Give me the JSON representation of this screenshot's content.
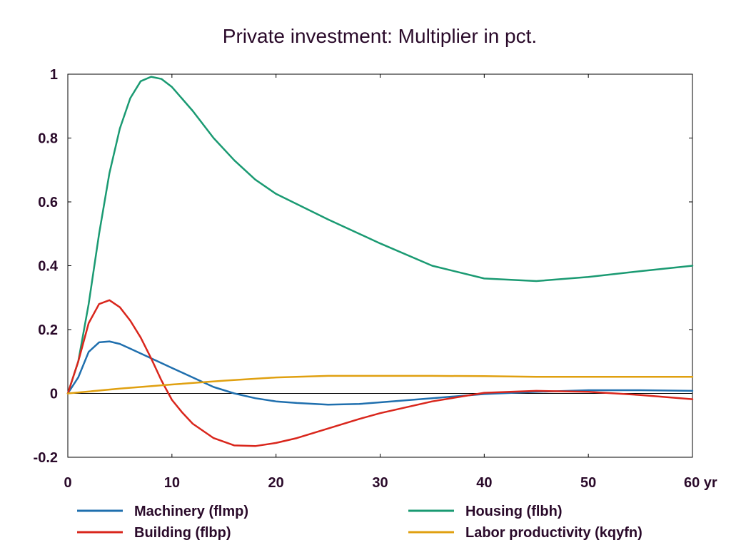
{
  "chart_data": {
    "type": "line",
    "title": "Private investment: Multiplier in pct.",
    "xlabel": "",
    "ylabel": "",
    "x_unit_label": "yr",
    "xlim": [
      0,
      60
    ],
    "ylim": [
      -0.2,
      1
    ],
    "x_ticks": [
      0,
      10,
      20,
      30,
      40,
      50,
      60
    ],
    "x_tick_labels": [
      "0",
      "10",
      "20",
      "30",
      "40",
      "50",
      "60 yr"
    ],
    "y_ticks": [
      -0.2,
      0,
      0.2,
      0.4,
      0.6,
      0.8,
      1
    ],
    "y_tick_labels": [
      "-0.2",
      "0",
      "0.2",
      "0.4",
      "0.6",
      "0.8",
      "1"
    ],
    "grid": false,
    "legend_position": "bottom",
    "series": [
      {
        "name": "Machinery (flmp)",
        "color": "#1f6fae",
        "x": [
          0,
          1,
          2,
          3,
          4,
          5,
          6,
          8,
          10,
          12,
          14,
          16,
          18,
          20,
          22,
          25,
          28,
          30,
          35,
          40,
          45,
          50,
          55,
          60
        ],
        "y": [
          0,
          0.05,
          0.13,
          0.16,
          0.163,
          0.155,
          0.14,
          0.11,
          0.08,
          0.05,
          0.02,
          0.0,
          -0.015,
          -0.025,
          -0.03,
          -0.035,
          -0.033,
          -0.028,
          -0.015,
          -0.002,
          0.005,
          0.01,
          0.01,
          0.008
        ]
      },
      {
        "name": "Housing (flbh)",
        "color": "#1a9a72",
        "x": [
          0,
          1,
          2,
          3,
          4,
          5,
          6,
          7,
          8,
          9,
          10,
          12,
          14,
          16,
          18,
          20,
          25,
          30,
          35,
          40,
          45,
          50,
          55,
          60
        ],
        "y": [
          0,
          0.1,
          0.28,
          0.5,
          0.69,
          0.83,
          0.925,
          0.978,
          0.992,
          0.985,
          0.96,
          0.885,
          0.8,
          0.73,
          0.67,
          0.625,
          0.545,
          0.47,
          0.4,
          0.36,
          0.352,
          0.365,
          0.383,
          0.4
        ]
      },
      {
        "name": "Building (flbp)",
        "color": "#d9261c",
        "x": [
          0,
          1,
          2,
          3,
          4,
          5,
          6,
          7,
          8,
          9,
          10,
          11,
          12,
          14,
          16,
          18,
          20,
          22,
          25,
          28,
          30,
          35,
          40,
          45,
          50,
          55,
          60
        ],
        "y": [
          0,
          0.1,
          0.22,
          0.28,
          0.292,
          0.27,
          0.228,
          0.175,
          0.11,
          0.04,
          -0.02,
          -0.06,
          -0.095,
          -0.14,
          -0.163,
          -0.165,
          -0.155,
          -0.14,
          -0.11,
          -0.08,
          -0.062,
          -0.025,
          0.002,
          0.008,
          0.005,
          -0.005,
          -0.018
        ]
      },
      {
        "name": "Labor productivity (kqyfn)",
        "color": "#e0a010",
        "x": [
          0,
          5,
          10,
          15,
          20,
          25,
          30,
          35,
          40,
          45,
          50,
          55,
          60
        ],
        "y": [
          0,
          0.015,
          0.028,
          0.04,
          0.05,
          0.055,
          0.055,
          0.055,
          0.054,
          0.052,
          0.052,
          0.052,
          0.052
        ]
      }
    ]
  }
}
